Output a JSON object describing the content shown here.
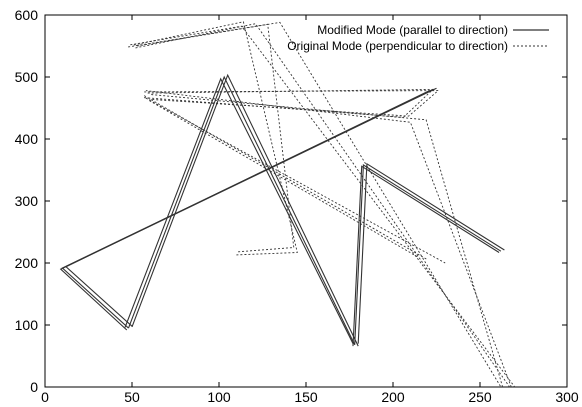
{
  "chart_data": {
    "type": "line",
    "title": "",
    "xlabel": "",
    "ylabel": "",
    "xlim": [
      0,
      300
    ],
    "ylim": [
      0,
      600
    ],
    "grid": false,
    "legend_position": "top-right",
    "x_ticks": [
      "0",
      "50",
      "100",
      "150",
      "200",
      "250",
      "300"
    ],
    "y_ticks": [
      "0",
      "100",
      "200",
      "300",
      "400",
      "500",
      "600"
    ],
    "series": [
      {
        "name": "Modified Mode (parallel to direction)",
        "style": "solid",
        "color": "#333333",
        "paths": [
          [
            [
              48,
              95
            ],
            [
              10,
              192
            ],
            [
              223,
              480
            ]
          ],
          [
            [
              47,
              92
            ],
            [
              9,
              190
            ],
            [
              221,
              478
            ]
          ],
          [
            [
              50,
              98
            ],
            [
              12,
              194
            ],
            [
              225,
              482
            ]
          ],
          [
            [
              48,
              95
            ],
            [
              103,
              500
            ],
            [
              178,
              68
            ]
          ],
          [
            [
              46,
              96
            ],
            [
              101,
              497
            ],
            [
              177,
              70
            ]
          ],
          [
            [
              50,
              97
            ],
            [
              105,
              503
            ],
            [
              180,
              66
            ]
          ],
          [
            [
              178,
              68
            ],
            [
              183,
              358
            ],
            [
              262,
              219
            ]
          ],
          [
            [
              177,
              66
            ],
            [
              182,
              356
            ],
            [
              261,
              217
            ]
          ],
          [
            [
              180,
              70
            ],
            [
              185,
              360
            ],
            [
              264,
              221
            ]
          ]
        ]
      },
      {
        "name": "Original Mode (perpendicular to direction)",
        "style": "dotted",
        "color": "#333333",
        "paths": [
          [
            [
              111,
              218
            ],
            [
              143,
              225
            ],
            [
              128,
              585
            ],
            [
              47,
              548
            ]
          ],
          [
            [
              110,
              213
            ],
            [
              145,
              217
            ],
            [
              114,
              589
            ],
            [
              50,
              551
            ]
          ],
          [
            [
              53,
              550
            ],
            [
              135,
              588
            ],
            [
              262,
              0
            ]
          ],
          [
            [
              49,
              552
            ],
            [
              113,
              582
            ],
            [
              270,
              0
            ]
          ],
          [
            [
              52,
              547
            ],
            [
              121,
              586
            ],
            [
              267,
              0
            ]
          ],
          [
            [
              268,
              0
            ],
            [
              210,
              427
            ],
            [
              58,
              478
            ]
          ],
          [
            [
              263,
              0
            ],
            [
              219,
              431
            ],
            [
              60,
              472
            ]
          ],
          [
            [
              59,
              474
            ],
            [
              223,
              480
            ],
            [
              206,
              435
            ],
            [
              56,
              467
            ]
          ],
          [
            [
              57,
              476
            ],
            [
              226,
              478
            ],
            [
              209,
              437
            ],
            [
              60,
              464
            ]
          ],
          [
            [
              60,
              462
            ],
            [
              214,
              210
            ]
          ],
          [
            [
              58,
              466
            ],
            [
              230,
              200
            ]
          ],
          [
            [
              57,
              470
            ],
            [
              220,
              205
            ]
          ]
        ]
      }
    ]
  }
}
